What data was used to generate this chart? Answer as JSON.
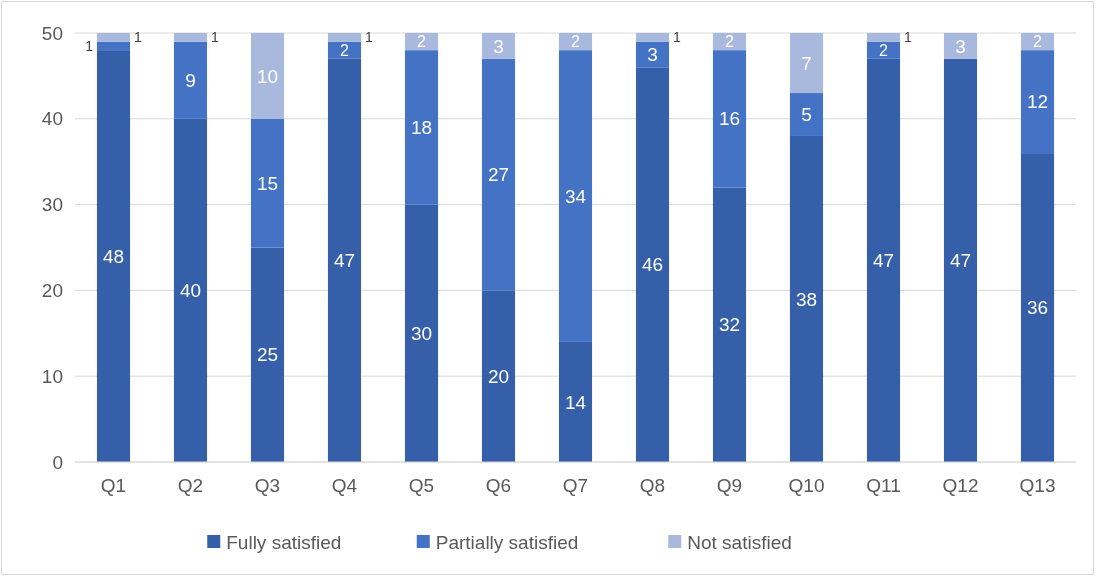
{
  "chart_data": {
    "type": "bar",
    "stacked": true,
    "categories": [
      "Q1",
      "Q2",
      "Q3",
      "Q4",
      "Q5",
      "Q6",
      "Q7",
      "Q8",
      "Q9",
      "Q10",
      "Q11",
      "Q12",
      "Q13"
    ],
    "series": [
      {
        "name": "Fully satisfied",
        "color": "#355fa9",
        "values": [
          48,
          40,
          25,
          47,
          30,
          20,
          14,
          46,
          32,
          38,
          47,
          47,
          36
        ]
      },
      {
        "name": "Partially satisfied",
        "color": "#4472c4",
        "values": [
          1,
          9,
          15,
          2,
          18,
          27,
          34,
          3,
          16,
          5,
          2,
          null,
          12
        ]
      },
      {
        "name": "Not satisfied",
        "color": "#a9b8dd",
        "values": [
          1,
          1,
          10,
          1,
          2,
          3,
          2,
          1,
          2,
          7,
          1,
          3,
          2
        ]
      }
    ],
    "ylim": [
      0,
      50
    ],
    "yticks": [
      0,
      10,
      20,
      30,
      40,
      50
    ],
    "grid": "y",
    "legend": "bottom",
    "data_labels": true
  }
}
